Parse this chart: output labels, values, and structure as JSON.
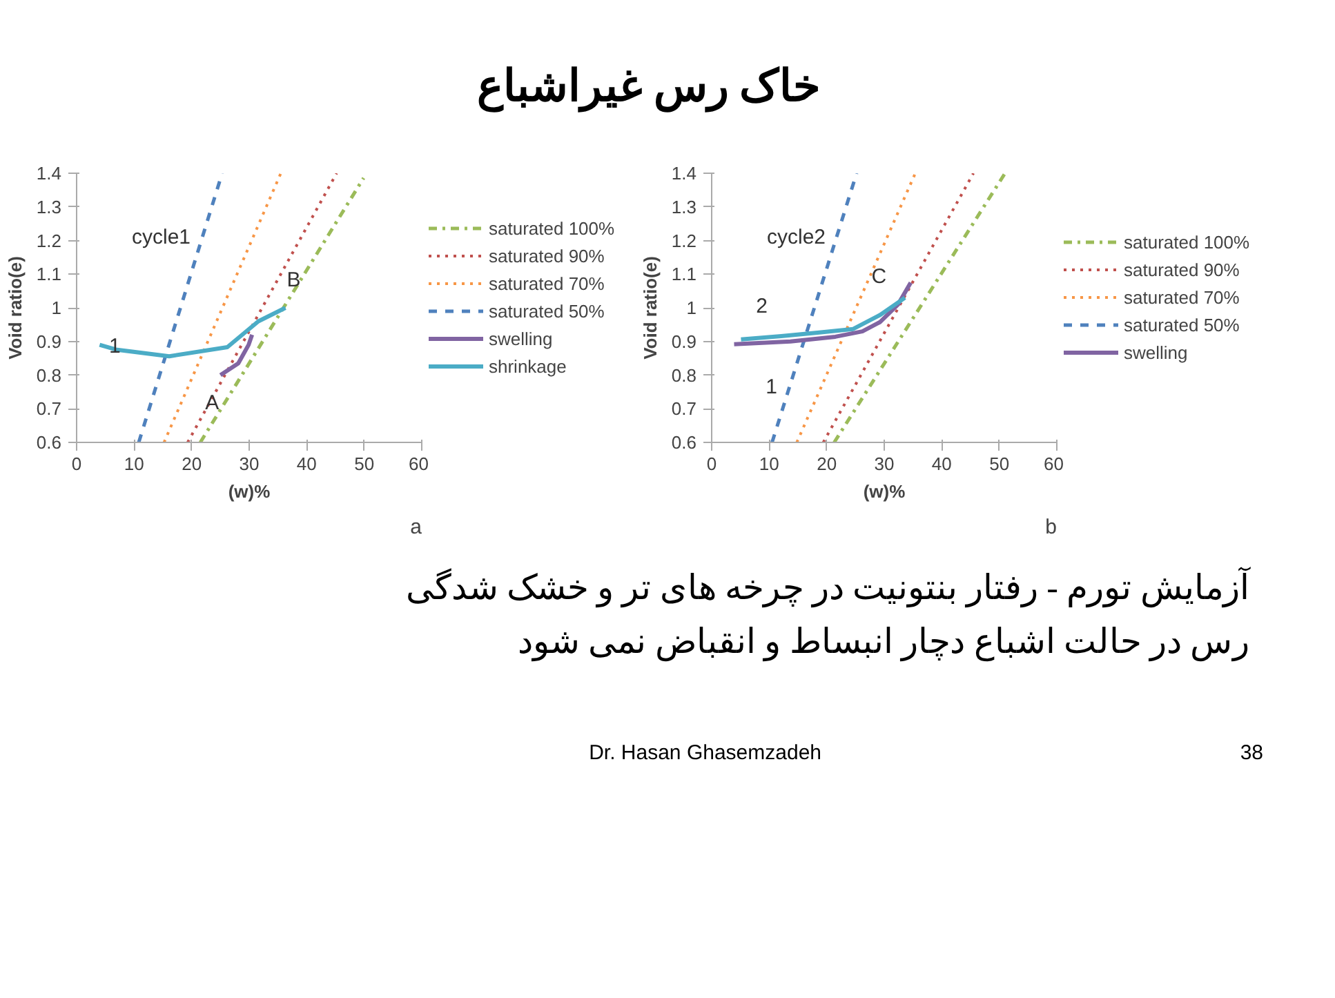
{
  "chart_data": [
    {
      "type": "other",
      "title": "خاک رس غیراشباع"
    },
    {
      "type": "line",
      "xlabel": "(w)%",
      "ylabel": "Void ratio(e)",
      "xlim": [
        0,
        60
      ],
      "ylim": [
        0.6,
        1.4
      ],
      "xticks": [
        0,
        10,
        20,
        30,
        40,
        50,
        60
      ],
      "yticks": [
        0.6,
        0.7,
        0.8,
        0.9,
        1,
        1.1,
        1.2,
        1.3,
        1.4
      ],
      "grid": false,
      "legend": "right",
      "series": [
        {
          "name": "saturated 100%",
          "color": "#9bbb59",
          "line_style": "dashdot",
          "x": [
            21.5,
            49.9
          ],
          "values": [
            0.6,
            1.386
          ]
        },
        {
          "name": "saturated 90%",
          "color": "#c0504d",
          "line_style": "dotted",
          "x": [
            19.3,
            45.2
          ],
          "values": [
            0.6,
            1.4
          ]
        },
        {
          "name": "saturated 70%",
          "color": "#f79646",
          "line_style": "dotted",
          "x": [
            15.2,
            35.5
          ],
          "values": [
            0.6,
            1.4
          ]
        },
        {
          "name": "saturated 50%",
          "color": "#4f81bd",
          "line_style": "dashed",
          "x": [
            10.8,
            25.3
          ],
          "values": [
            0.6,
            1.4
          ]
        },
        {
          "name": "swelling",
          "color": "#8064a2",
          "line_style": "solid",
          "x": [
            25,
            28.1,
            29.9,
            30.5
          ],
          "values": [
            0.8,
            0.835,
            0.89,
            0.92
          ]
        },
        {
          "name": "shrinkage",
          "color": "#4bacc6",
          "line_style": "solid",
          "x": [
            36.3,
            31.6,
            26.2,
            16.1,
            6.8,
            4
          ],
          "values": [
            1.0,
            0.96,
            0.883,
            0.856,
            0.876,
            0.89
          ]
        }
      ],
      "annotations": [
        "cycle1",
        {
          "text": "1",
          "x": 4,
          "y": 0.89
        },
        {
          "text": "A",
          "x": 25,
          "y": 0.8
        },
        {
          "text": "B",
          "x": 36.3,
          "y": 1.0
        },
        "a"
      ]
    },
    {
      "type": "line",
      "xlabel": "(w)%",
      "ylabel": "Void ratio(e)",
      "xlim": [
        0,
        60
      ],
      "ylim": [
        0.6,
        1.4
      ],
      "xticks": [
        0,
        10,
        20,
        30,
        40,
        50,
        60
      ],
      "yticks": [
        0.6,
        0.7,
        0.8,
        0.9,
        1,
        1.1,
        1.2,
        1.3,
        1.4
      ],
      "grid": false,
      "legend": "right",
      "series": [
        {
          "name": "saturated 100%",
          "color": "#9bbb59",
          "line_style": "dashdot",
          "x": [
            21.3,
            51
          ],
          "values": [
            0.6,
            1.4
          ]
        },
        {
          "name": "saturated 90%",
          "color": "#c0504d",
          "line_style": "dotted",
          "x": [
            19.4,
            45.5
          ],
          "values": [
            0.6,
            1.4
          ]
        },
        {
          "name": "saturated 70%",
          "color": "#f79646",
          "line_style": "dotted",
          "x": [
            14.8,
            35.4
          ],
          "values": [
            0.6,
            1.4
          ]
        },
        {
          "name": "saturated 50%",
          "color": "#4f81bd",
          "line_style": "dashed",
          "x": [
            10.5,
            25.2
          ],
          "values": [
            0.6,
            1.4
          ]
        },
        {
          "name": "swelling",
          "color": "#8064a2",
          "line_style": "solid",
          "x": [
            3.9,
            13.7,
            21.5,
            26.2,
            29.3,
            32.4,
            34.6
          ],
          "values": [
            0.892,
            0.9,
            0.914,
            0.93,
            0.958,
            1.01,
            1.075
          ]
        },
        {
          "color": "#4bacc6",
          "line_style": "solid",
          "x": [
            33.6,
            29.3,
            24.6,
            18.4,
            12.1,
            5.1
          ],
          "values": [
            1.03,
            0.979,
            0.937,
            0.926,
            0.916,
            0.906
          ]
        }
      ],
      "annotations": [
        "cycle2",
        {
          "text": "2",
          "x": 5.1,
          "y": 0.906
        },
        {
          "text": "1",
          "x": 3.9,
          "y": 0.892
        },
        {
          "text": "C",
          "x": 34.6,
          "y": 1.075
        },
        "b"
      ]
    },
    {
      "type": "other",
      "annotations": [
        "آزمایش تورم - رفتار بنتونیت در چرخه های تر و خشک شدگی",
        "رس در حالت اشباع دچار انبساط و انقباض نمی شود",
        "Dr. Hasan Ghasemzadeh",
        "38"
      ]
    }
  ]
}
